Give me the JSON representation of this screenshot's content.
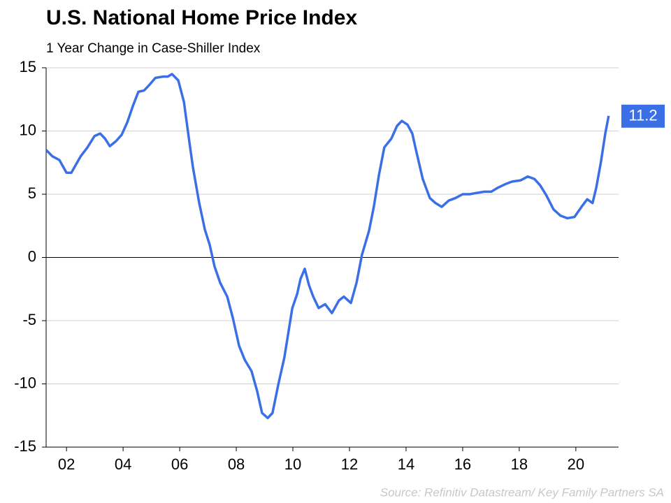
{
  "chart_data": {
    "type": "line",
    "title": "U.S. National Home Price Index",
    "subtitle": "1 Year Change in Case-Shiller Index",
    "source": "Source: Refinitiv Datastream/ Key Family Partners SA",
    "xlim": [
      2001.28,
      2021.51
    ],
    "xticks": [
      {
        "value": 2002,
        "label": "02"
      },
      {
        "value": 2004,
        "label": "04"
      },
      {
        "value": 2006,
        "label": "06"
      },
      {
        "value": 2008,
        "label": "08"
      },
      {
        "value": 2010,
        "label": "10"
      },
      {
        "value": 2012,
        "label": "12"
      },
      {
        "value": 2014,
        "label": "14"
      },
      {
        "value": 2016,
        "label": "16"
      },
      {
        "value": 2018,
        "label": "18"
      },
      {
        "value": 2020,
        "label": "20"
      }
    ],
    "ylim": [
      -15,
      15
    ],
    "yticks": [
      -15,
      -10,
      -5,
      0,
      5,
      10,
      15
    ],
    "grid": true,
    "x": [
      2001.28,
      2001.5,
      2001.75,
      2002.0,
      2002.17,
      2002.5,
      2002.74,
      2002.99,
      2003.19,
      2003.36,
      2003.53,
      2003.75,
      2003.95,
      2004.15,
      2004.35,
      2004.54,
      2004.74,
      2004.91,
      2005.14,
      2005.41,
      2005.58,
      2005.73,
      2005.95,
      2006.15,
      2006.35,
      2006.47,
      2006.69,
      2006.89,
      2007.06,
      2007.23,
      2007.43,
      2007.68,
      2007.88,
      2008.1,
      2008.3,
      2008.54,
      2008.74,
      2008.91,
      2009.11,
      2009.28,
      2009.48,
      2009.7,
      2009.98,
      2010.15,
      2010.27,
      2010.42,
      2010.57,
      2010.72,
      2010.91,
      2011.14,
      2011.38,
      2011.63,
      2011.8,
      2012.05,
      2012.25,
      2012.44,
      2012.69,
      2012.86,
      2013.04,
      2013.23,
      2013.48,
      2013.68,
      2013.85,
      2014.05,
      2014.22,
      2014.35,
      2014.59,
      2014.84,
      2015.04,
      2015.26,
      2015.51,
      2015.75,
      2016.0,
      2016.25,
      2016.49,
      2016.77,
      2017.01,
      2017.23,
      2017.51,
      2017.75,
      2018.05,
      2018.3,
      2018.54,
      2018.74,
      2018.96,
      2019.21,
      2019.46,
      2019.7,
      2019.95,
      2020.2,
      2020.4,
      2020.59,
      2020.72,
      2020.89,
      2021.04,
      2021.16
    ],
    "series": [
      {
        "color": "#3b6fe6",
        "values": [
          8.5,
          8.0,
          7.7,
          6.7,
          6.7,
          8.0,
          8.7,
          9.6,
          9.8,
          9.4,
          8.8,
          9.2,
          9.7,
          10.7,
          12.0,
          13.1,
          13.2,
          13.6,
          14.2,
          14.3,
          14.3,
          14.5,
          14.0,
          12.3,
          9.0,
          7.1,
          4.3,
          2.2,
          1.0,
          -0.7,
          -2.0,
          -3.1,
          -4.8,
          -7.0,
          -8.1,
          -9.0,
          -10.6,
          -12.3,
          -12.7,
          -12.3,
          -10.1,
          -7.9,
          -4.0,
          -2.9,
          -1.7,
          -0.9,
          -2.2,
          -3.1,
          -4.0,
          -3.7,
          -4.4,
          -3.4,
          -3.1,
          -3.6,
          -2.0,
          0.2,
          2.1,
          4.0,
          6.5,
          8.7,
          9.4,
          10.4,
          10.8,
          10.5,
          9.8,
          8.5,
          6.2,
          4.7,
          4.3,
          4.0,
          4.5,
          4.7,
          5.0,
          5.0,
          5.1,
          5.2,
          5.2,
          5.5,
          5.8,
          6.0,
          6.1,
          6.4,
          6.2,
          5.7,
          4.9,
          3.8,
          3.3,
          3.1,
          3.2,
          4.0,
          4.6,
          4.3,
          5.5,
          7.6,
          9.8,
          11.2
        ]
      }
    ]
  }
}
